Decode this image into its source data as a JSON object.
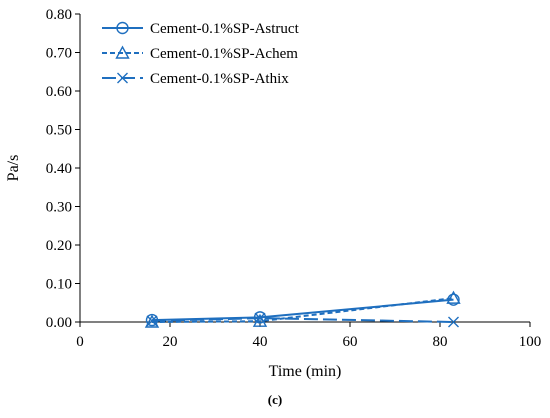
{
  "chart_data": {
    "type": "line",
    "title": "",
    "xlabel": "Time (min)",
    "ylabel": "Pa/s",
    "xlim": [
      0,
      100
    ],
    "ylim": [
      0,
      0.8
    ],
    "x_ticks": [
      "0",
      "20",
      "40",
      "60",
      "80",
      "100"
    ],
    "y_ticks": [
      "0.00",
      "0.10",
      "0.20",
      "0.30",
      "0.40",
      "0.50",
      "0.60",
      "0.70",
      "0.80"
    ],
    "grid": false,
    "legend_position": "top-left",
    "series": [
      {
        "name": "Cement-0.1%SP-Astruct",
        "marker": "circle",
        "line_style": "solid",
        "color": "#1f6fbf",
        "x": [
          16,
          40,
          83
        ],
        "y": [
          0.005,
          0.012,
          0.058
        ]
      },
      {
        "name": "Cement-0.1%SP-Achem",
        "marker": "triangle",
        "line_style": "short-dash",
        "color": "#1f6fbf",
        "x": [
          16,
          40,
          83
        ],
        "y": [
          0.0,
          0.002,
          0.062
        ]
      },
      {
        "name": "Cement-0.1%SP-Athix",
        "marker": "x",
        "line_style": "long-dash",
        "color": "#1f6fbf",
        "x": [
          16,
          40,
          83
        ],
        "y": [
          0.003,
          0.01,
          0.0
        ]
      }
    ]
  },
  "caption": "(c)"
}
